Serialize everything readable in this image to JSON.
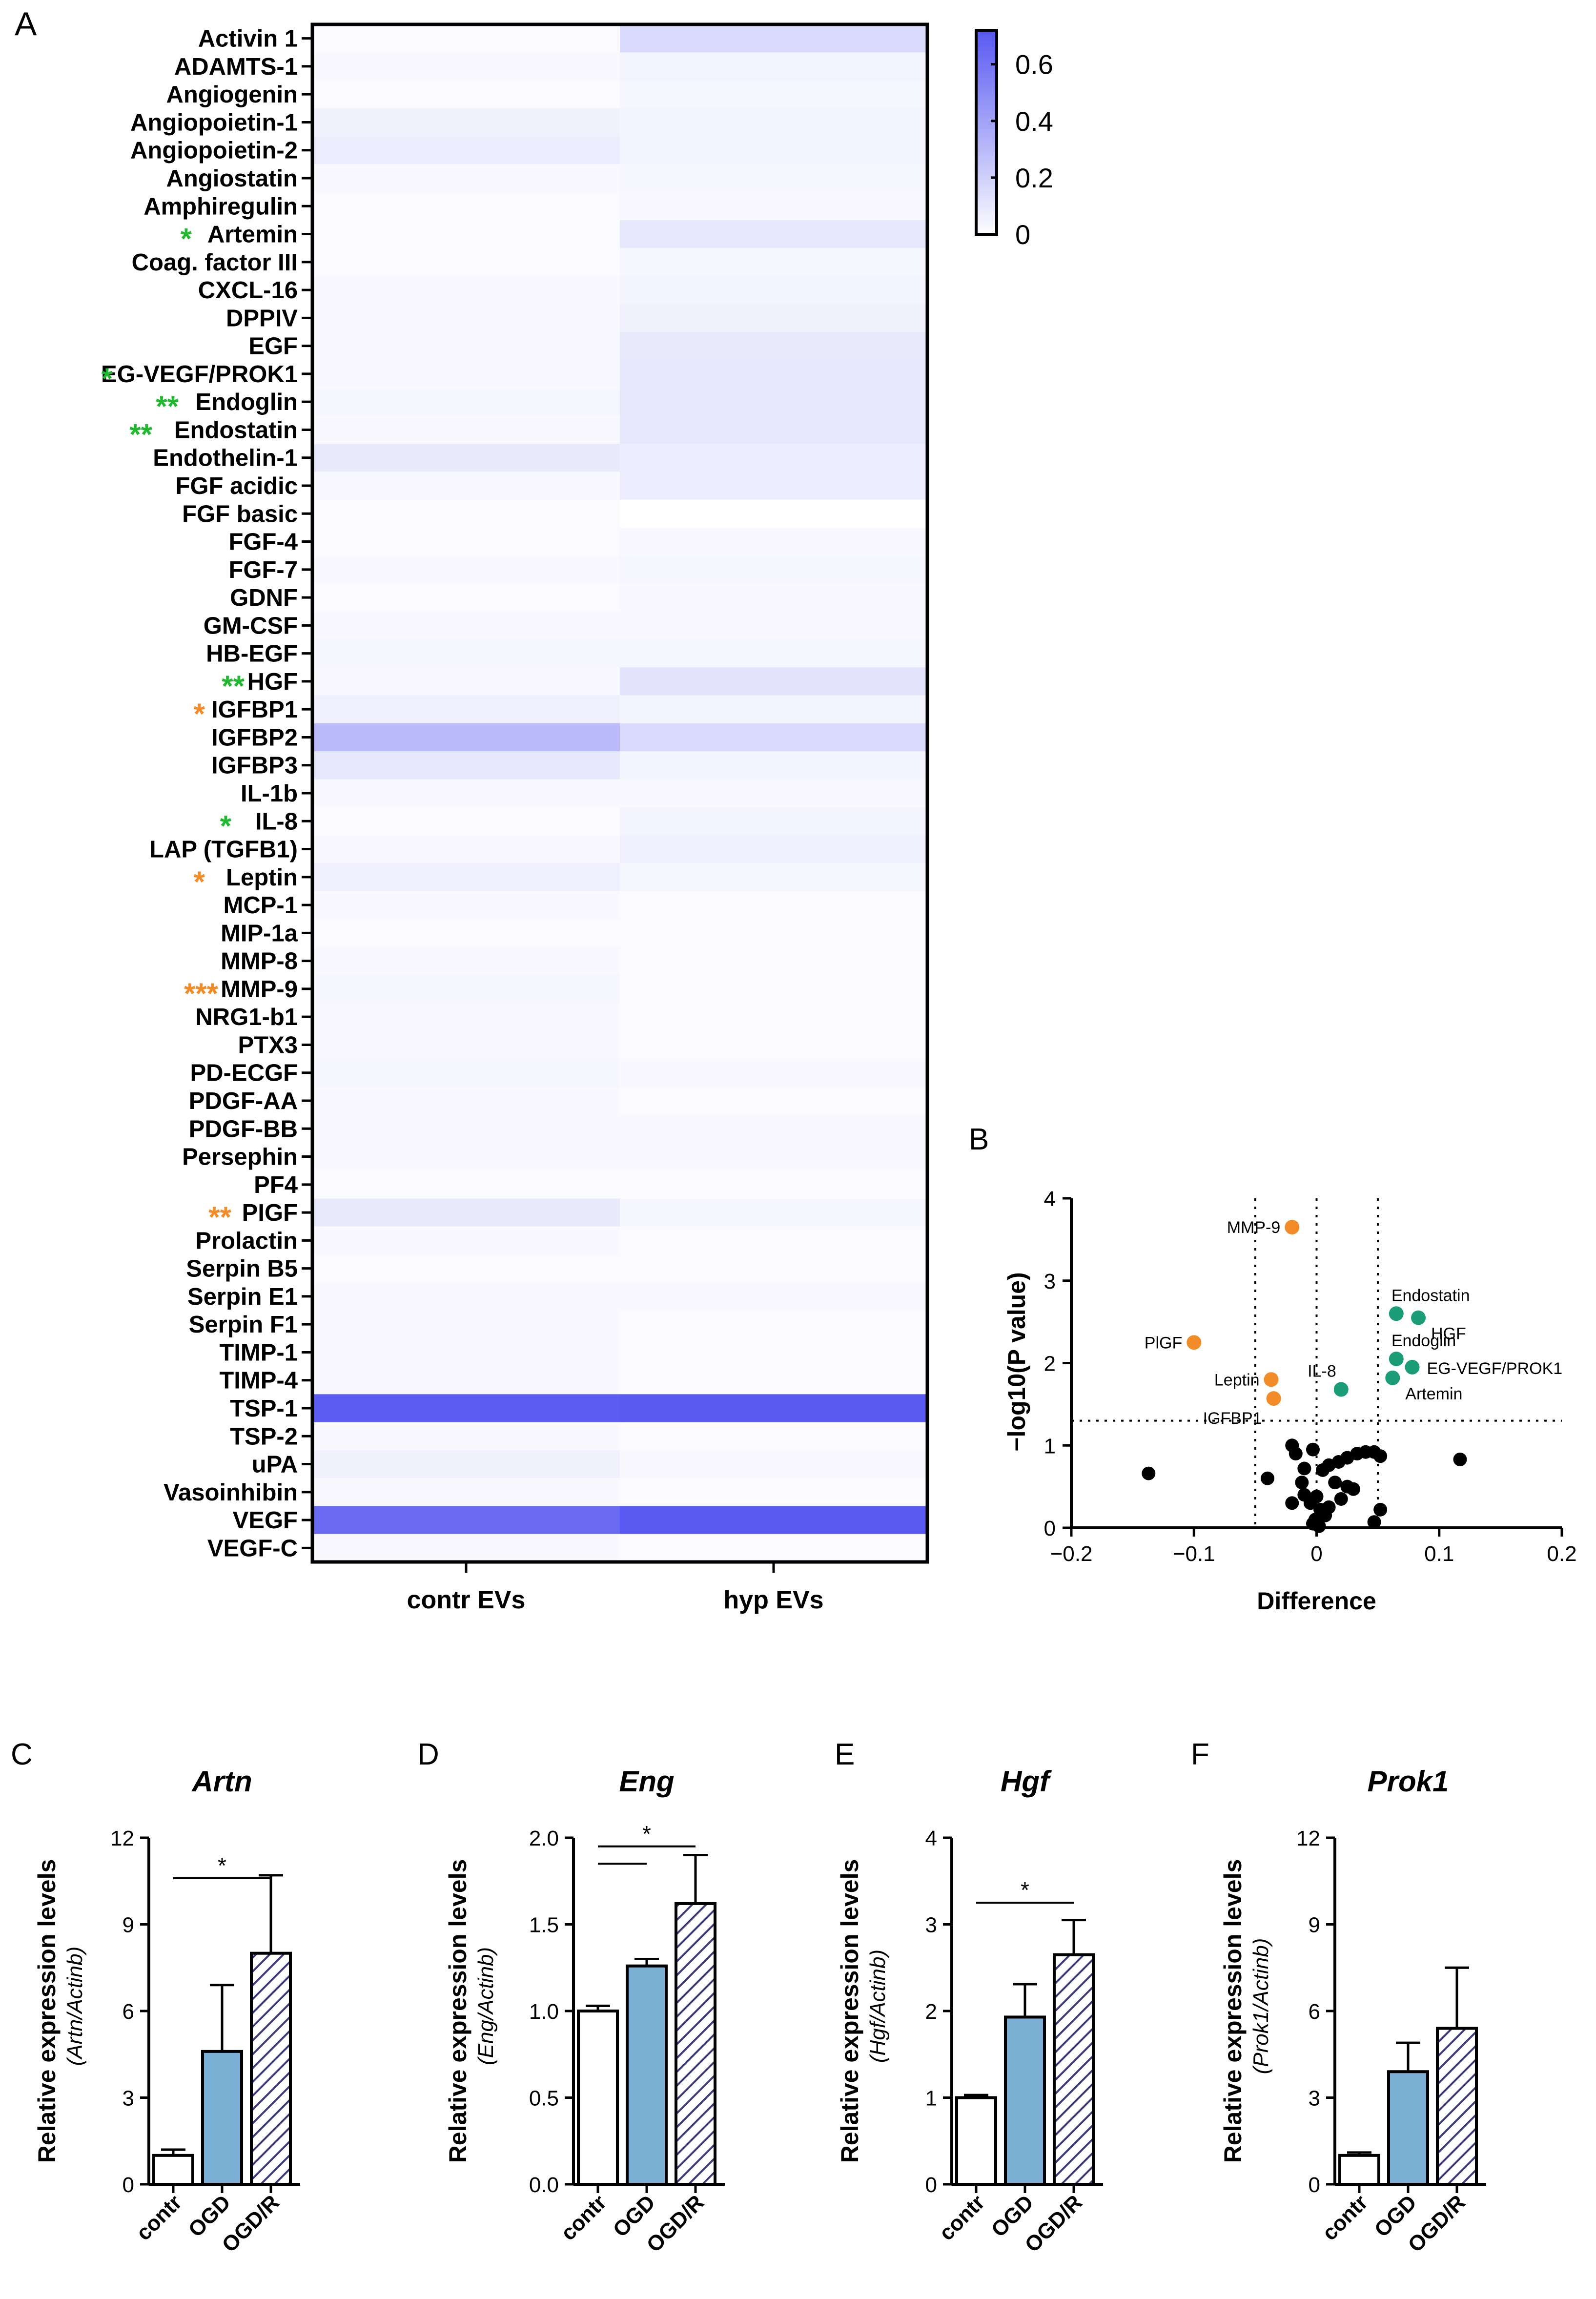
{
  "panels": {
    "A": "A",
    "B": "B",
    "C": "C",
    "D": "D",
    "E": "E",
    "F": "F"
  },
  "colors": {
    "heat_max": "#5a5af2",
    "heat_min": "#ffffff",
    "orange": "#f28c28",
    "green": "#1b9e77",
    "star_green": "#1fb82e",
    "bar_blue": "#7bafd4",
    "hatch": "#3a3a7a"
  },
  "chart_data": [
    {
      "type": "heatmap",
      "panel": "A",
      "columns": [
        "contr EVs",
        "hyp EVs"
      ],
      "rows": [
        "Activin 1",
        "ADAMTS-1",
        "Angiogenin",
        "Angiopoietin-1",
        "Angiopoietin-2",
        "Angiostatin",
        "Amphiregulin",
        "Artemin",
        "Coag. factor III",
        "CXCL-16",
        "DPPIV",
        "EGF",
        "EG-VEGF/PROK1",
        "Endoglin",
        "Endostatin",
        "Endothelin-1",
        "FGF acidic",
        "FGF basic",
        "FGF-4",
        "FGF-7",
        "GDNF",
        "GM-CSF",
        "HB-EGF",
        "HGF",
        "IGFBP1",
        "IGFBP2",
        "IGFBP3",
        "IL-1b",
        "IL-8",
        "LAP (TGFB1)",
        "Leptin",
        "MCP-1",
        "MIP-1a",
        "MMP-8",
        "MMP-9",
        "NRG1-b1",
        "PTX3",
        "PD-ECGF",
        "PDGF-AA",
        "PDGF-BB",
        "Persephin",
        "PF4",
        "PIGF",
        "Prolactin",
        "Serpin B5",
        "Serpin E1",
        "Serpin F1",
        "TIMP-1",
        "TIMP-4",
        "TSP-1",
        "TSP-2",
        "uPA",
        "Vasoinhibin",
        "VEGF",
        "VEGF-C"
      ],
      "values": [
        [
          0.02,
          0.16
        ],
        [
          0.03,
          0.05
        ],
        [
          0.02,
          0.04
        ],
        [
          0.06,
          0.05
        ],
        [
          0.08,
          0.05
        ],
        [
          0.03,
          0.04
        ],
        [
          0.02,
          0.03
        ],
        [
          0.02,
          0.1
        ],
        [
          0.02,
          0.04
        ],
        [
          0.03,
          0.05
        ],
        [
          0.03,
          0.06
        ],
        [
          0.03,
          0.09
        ],
        [
          0.03,
          0.1
        ],
        [
          0.04,
          0.1
        ],
        [
          0.03,
          0.1
        ],
        [
          0.09,
          0.08
        ],
        [
          0.03,
          0.08
        ],
        [
          0.02,
          0.0
        ],
        [
          0.02,
          0.03
        ],
        [
          0.03,
          0.04
        ],
        [
          0.02,
          0.03
        ],
        [
          0.03,
          0.03
        ],
        [
          0.04,
          0.04
        ],
        [
          0.03,
          0.12
        ],
        [
          0.07,
          0.05
        ],
        [
          0.3,
          0.16
        ],
        [
          0.1,
          0.05
        ],
        [
          0.03,
          0.03
        ],
        [
          0.02,
          0.05
        ],
        [
          0.03,
          0.07
        ],
        [
          0.07,
          0.04
        ],
        [
          0.03,
          0.02
        ],
        [
          0.02,
          0.02
        ],
        [
          0.03,
          0.02
        ],
        [
          0.04,
          0.02
        ],
        [
          0.03,
          0.02
        ],
        [
          0.03,
          0.02
        ],
        [
          0.04,
          0.03
        ],
        [
          0.03,
          0.02
        ],
        [
          0.03,
          0.03
        ],
        [
          0.03,
          0.03
        ],
        [
          0.02,
          0.02
        ],
        [
          0.09,
          0.04
        ],
        [
          0.03,
          0.02
        ],
        [
          0.02,
          0.02
        ],
        [
          0.03,
          0.03
        ],
        [
          0.03,
          0.02
        ],
        [
          0.03,
          0.02
        ],
        [
          0.03,
          0.02
        ],
        [
          0.71,
          0.73
        ],
        [
          0.03,
          0.02
        ],
        [
          0.06,
          0.03
        ],
        [
          0.03,
          0.02
        ],
        [
          0.65,
          0.72
        ],
        [
          0.03,
          0.02
        ]
      ],
      "significance": [
        {
          "row": "Artemin",
          "stars": "*",
          "color": "green"
        },
        {
          "row": "EG-VEGF/PROK1",
          "stars": "*",
          "color": "green"
        },
        {
          "row": "Endoglin",
          "stars": "**",
          "color": "green"
        },
        {
          "row": "Endostatin",
          "stars": "**",
          "color": "green"
        },
        {
          "row": "HGF",
          "stars": "**",
          "color": "green"
        },
        {
          "row": "IGFBP1",
          "stars": "*",
          "color": "orange"
        },
        {
          "row": "IL-8",
          "stars": "*",
          "color": "green"
        },
        {
          "row": "Leptin",
          "stars": "*",
          "color": "orange"
        },
        {
          "row": "MMP-9",
          "stars": "***",
          "color": "orange"
        },
        {
          "row": "PIGF",
          "stars": "**",
          "color": "orange"
        }
      ],
      "colorbar": {
        "range": [
          0,
          0.72
        ],
        "ticks": [
          "0",
          "0.2",
          "0.4",
          "0.6"
        ],
        "tick_values": [
          0,
          0.2,
          0.4,
          0.6
        ]
      }
    },
    {
      "type": "scatter",
      "panel": "B",
      "xlabel": "Difference",
      "ylabel": "−log10(P value)",
      "xlim": [
        -0.2,
        0.2
      ],
      "ylim": [
        0,
        4
      ],
      "xticks": [
        "−0.2",
        "−0.1",
        "0",
        "0.1",
        "0.2"
      ],
      "xtick_values": [
        -0.2,
        -0.1,
        0,
        0.1,
        0.2
      ],
      "yticks": [
        "0",
        "1",
        "2",
        "3",
        "4"
      ],
      "ytick_values": [
        0,
        1,
        2,
        3,
        4
      ],
      "vlines": [
        -0.05,
        0,
        0.05
      ],
      "hline": 1.3,
      "highlighted": [
        {
          "label": "MMP-9",
          "x": -0.02,
          "y": 3.65,
          "color": "orange",
          "label_side": "left"
        },
        {
          "label": "PlGF",
          "x": -0.1,
          "y": 2.25,
          "color": "orange",
          "label_side": "left"
        },
        {
          "label": "Leptin",
          "x": -0.037,
          "y": 1.8,
          "color": "orange",
          "label_side": "left"
        },
        {
          "label": "IGFBP1",
          "x": -0.035,
          "y": 1.57,
          "color": "orange",
          "label_side": "left-below"
        },
        {
          "label": "Endostatin",
          "x": 0.065,
          "y": 2.6,
          "color": "green",
          "label_side": "above-right"
        },
        {
          "label": "HGF",
          "x": 0.083,
          "y": 2.55,
          "color": "green",
          "label_side": "right-below"
        },
        {
          "label": "Endoglin",
          "x": 0.065,
          "y": 2.05,
          "color": "green",
          "label_side": "above-right"
        },
        {
          "label": "EG-VEGF/PROK1",
          "x": 0.078,
          "y": 1.95,
          "color": "green",
          "label_side": "right"
        },
        {
          "label": "IL-8",
          "x": 0.02,
          "y": 1.68,
          "color": "green",
          "label_side": "above-left"
        },
        {
          "label": "Artemin",
          "x": 0.062,
          "y": 1.82,
          "color": "green",
          "label_side": "right-below"
        }
      ],
      "points": [
        [
          -0.137,
          0.66
        ],
        [
          -0.017,
          0.9
        ],
        [
          -0.02,
          1.0
        ],
        [
          -0.04,
          0.6
        ],
        [
          -0.003,
          0.95
        ],
        [
          -0.01,
          0.72
        ],
        [
          -0.012,
          0.55
        ],
        [
          0.005,
          0.7
        ],
        [
          0.01,
          0.76
        ],
        [
          0.018,
          0.8
        ],
        [
          0.025,
          0.85
        ],
        [
          0.033,
          0.9
        ],
        [
          0.04,
          0.92
        ],
        [
          0.047,
          0.92
        ],
        [
          0.052,
          0.87
        ],
        [
          0.02,
          0.35
        ],
        [
          0.025,
          0.5
        ],
        [
          0.03,
          0.47
        ],
        [
          0.0,
          0.38
        ],
        [
          -0.005,
          0.3
        ],
        [
          0.003,
          0.22
        ],
        [
          0.007,
          0.15
        ],
        [
          0.01,
          0.25
        ],
        [
          -0.001,
          0.1
        ],
        [
          -0.003,
          0.05
        ],
        [
          0.002,
          0.02
        ],
        [
          -0.02,
          0.3
        ],
        [
          -0.01,
          0.4
        ],
        [
          0.015,
          0.55
        ],
        [
          0.047,
          0.07
        ],
        [
          0.052,
          0.22
        ],
        [
          0.117,
          0.83
        ]
      ]
    },
    {
      "type": "bar",
      "panel": "C",
      "title": "Artn",
      "ylabel": "Relative expression levels",
      "ylabel_sub": "(Artn/Actinb)",
      "categories": [
        "contr",
        "OGD",
        "OGD/R"
      ],
      "values": [
        1.0,
        4.6,
        8.0
      ],
      "errors": [
        0.2,
        2.3,
        2.7
      ],
      "ylim": [
        0,
        12
      ],
      "yticks": [
        "0",
        "3",
        "6",
        "9",
        "12"
      ],
      "ytick_values": [
        0,
        3,
        6,
        9,
        12
      ],
      "significance": [
        {
          "from": 0,
          "to": 2,
          "stars": "*",
          "level": 10.6
        }
      ]
    },
    {
      "type": "bar",
      "panel": "D",
      "title": "Eng",
      "ylabel": "Relative expression levels",
      "ylabel_sub": "(Eng/Actinb)",
      "categories": [
        "contr",
        "OGD",
        "OGD/R"
      ],
      "values": [
        1.0,
        1.26,
        1.62
      ],
      "errors": [
        0.03,
        0.04,
        0.28
      ],
      "ylim": [
        0,
        2.0
      ],
      "yticks": [
        "0.0",
        "0.5",
        "1.0",
        "1.5",
        "2.0"
      ],
      "ytick_values": [
        0,
        0.5,
        1.0,
        1.5,
        2.0
      ],
      "significance": [
        {
          "from": 0,
          "to": 2,
          "stars": "*",
          "level": 1.95
        },
        {
          "from": 0,
          "to": 1,
          "stars": "",
          "level": 1.85
        }
      ]
    },
    {
      "type": "bar",
      "panel": "E",
      "title": "Hgf",
      "ylabel": "Relative expression levels",
      "ylabel_sub": "(Hgf/Actinb)",
      "categories": [
        "contr",
        "OGD",
        "OGD/R"
      ],
      "values": [
        1.0,
        1.93,
        2.65
      ],
      "errors": [
        0.03,
        0.38,
        0.4
      ],
      "ylim": [
        0,
        4
      ],
      "yticks": [
        "0",
        "1",
        "2",
        "3",
        "4"
      ],
      "ytick_values": [
        0,
        1,
        2,
        3,
        4
      ],
      "significance": [
        {
          "from": 0,
          "to": 2,
          "stars": "*",
          "level": 3.25
        }
      ]
    },
    {
      "type": "bar",
      "panel": "F",
      "title": "Prok1",
      "ylabel": "Relative expression levels",
      "ylabel_sub": "(Prok1/Actinb)",
      "categories": [
        "contr",
        "OGD",
        "OGD/R"
      ],
      "values": [
        1.0,
        3.9,
        5.4
      ],
      "errors": [
        0.1,
        1.0,
        2.1
      ],
      "ylim": [
        0,
        12
      ],
      "yticks": [
        "0",
        "3",
        "6",
        "9",
        "12"
      ],
      "ytick_values": [
        0,
        3,
        6,
        9,
        12
      ],
      "significance": []
    }
  ]
}
